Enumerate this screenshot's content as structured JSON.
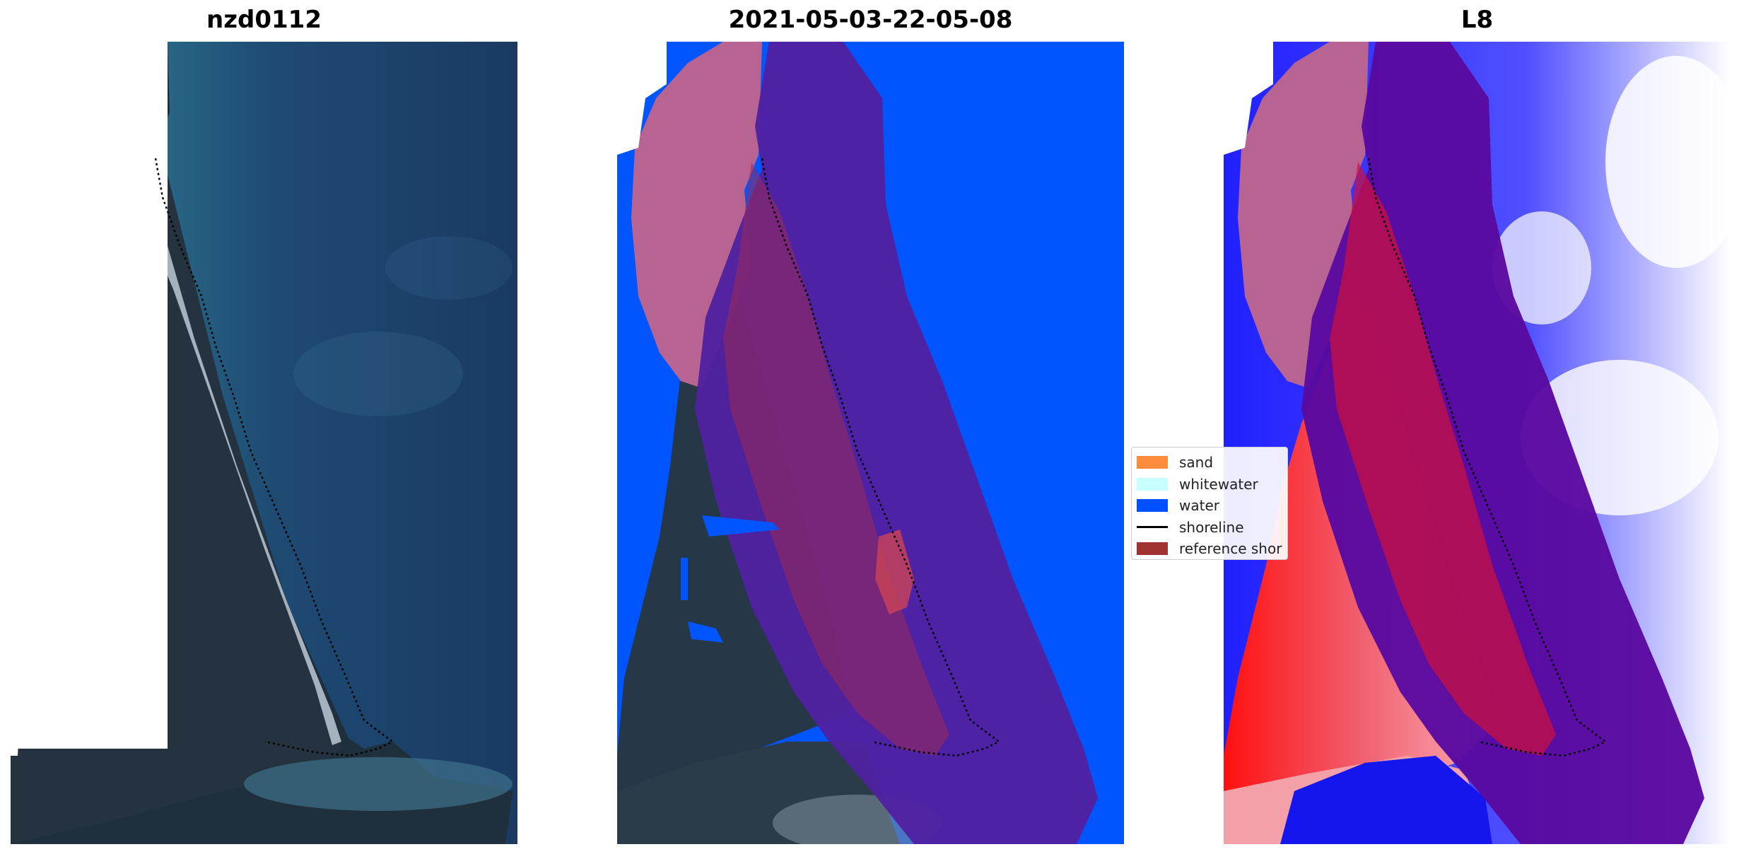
{
  "panels": [
    {
      "title": "nzd0112"
    },
    {
      "title": "2021-05-03-22-05-08"
    },
    {
      "title": "L8"
    }
  ],
  "legend": {
    "items": [
      {
        "label": "sand",
        "color": "#ff8c3c",
        "kind": "patch"
      },
      {
        "label": "whitewater",
        "color": "#c8ffff",
        "kind": "patch"
      },
      {
        "label": "water",
        "color": "#0050ff",
        "kind": "patch"
      },
      {
        "label": "shoreline",
        "color": "#000000",
        "kind": "line"
      },
      {
        "label": "reference shor",
        "color": "#a03232",
        "kind": "patch"
      }
    ]
  },
  "colors": {
    "ocean": "#1b3d66",
    "land": "#1e2f3f",
    "beach": "#c8d4e0",
    "water_class": "#0055ff",
    "buffer": "#5020a0",
    "reference_zone": "#b86492",
    "ndwi_red": "#e8102a",
    "ndwi_blue": "#1010ee"
  }
}
